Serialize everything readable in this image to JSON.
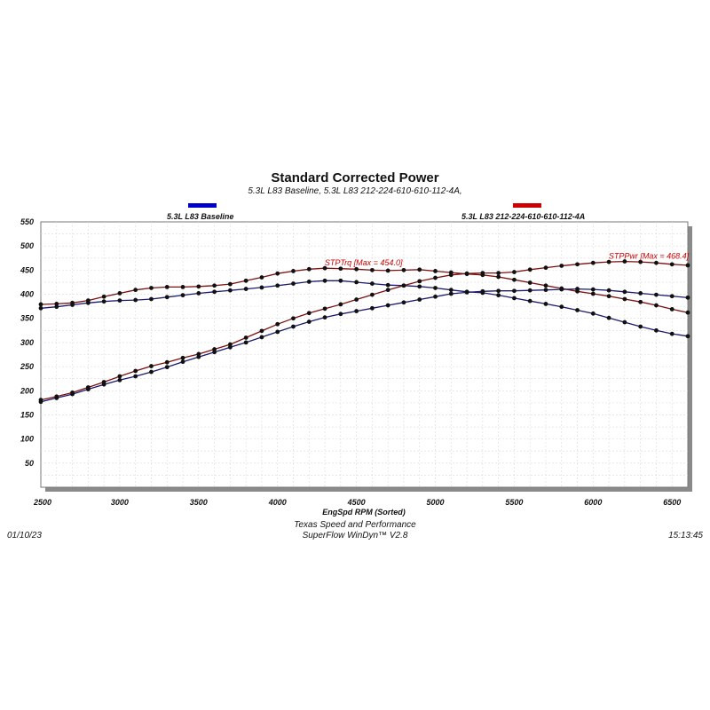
{
  "header": {
    "title": "Standard Corrected Power",
    "subtitle": "5.3L L83 Baseline, 5.3L L83 212-224-610-610-112-4A,"
  },
  "legend": [
    {
      "label": "5.3L L83 Baseline",
      "color": "#0000cc"
    },
    {
      "label": "5.3L L83 212-224-610-610-112-4A",
      "color": "#cc0000"
    }
  ],
  "footer": {
    "date": "01/10/23",
    "time": "15:13:45",
    "shop": "Texas Speed and Performance",
    "software": "SuperFlow WinDyn™  V2.8"
  },
  "chart_data": {
    "type": "line",
    "title": "Standard Corrected Power",
    "xlabel": "EngSpd  RPM   (Sorted)",
    "ylabel": "",
    "xlim": [
      2500,
      6600
    ],
    "ylim": [
      0,
      550
    ],
    "x_ticks": [
      2500,
      3000,
      3500,
      4000,
      4500,
      5000,
      5500,
      6000,
      6500
    ],
    "y_ticks": [
      50,
      100,
      150,
      200,
      250,
      300,
      350,
      400,
      450,
      500,
      550
    ],
    "grid": true,
    "legend_position": "top",
    "x": [
      2500,
      2600,
      2700,
      2800,
      2900,
      3000,
      3100,
      3200,
      3300,
      3400,
      3500,
      3600,
      3700,
      3800,
      3900,
      4000,
      4100,
      4200,
      4300,
      4400,
      4500,
      4600,
      4700,
      4800,
      4900,
      5000,
      5100,
      5200,
      5300,
      5400,
      5500,
      5600,
      5700,
      5800,
      5900,
      6000,
      6100,
      6200,
      6300,
      6400,
      6500,
      6600
    ],
    "series": [
      {
        "name": "5.3L L83 Baseline",
        "color": "#1a1a6e",
        "values": [
          371,
          374,
          378,
          382,
          385,
          387,
          388,
          390,
          394,
          398,
          402,
          405,
          408,
          411,
          414,
          418,
          422,
          426,
          428,
          428,
          425,
          422,
          419,
          418,
          416,
          413,
          409,
          405,
          403,
          398,
          392,
          386,
          380,
          374,
          367,
          360,
          351,
          342,
          333,
          325,
          318,
          313
        ]
      },
      {
        "name": "5.3L L83 212-224-610-610-112-4A",
        "color": "#7a1010",
        "values": [
          379,
          380,
          382,
          387,
          395,
          402,
          409,
          413,
          415,
          415,
          416,
          418,
          421,
          428,
          435,
          443,
          448,
          452,
          454,
          453,
          452,
          450,
          449,
          450,
          451,
          448,
          445,
          442,
          440,
          436,
          430,
          424,
          418,
          412,
          406,
          401,
          396,
          390,
          384,
          377,
          369,
          362
        ]
      },
      {
        "name": "5.3L L83 Baseline",
        "color": "#1a1a6e",
        "values": [
          177,
          185,
          193,
          203,
          213,
          222,
          230,
          239,
          249,
          260,
          270,
          280,
          290,
          300,
          311,
          322,
          333,
          343,
          352,
          359,
          365,
          371,
          377,
          383,
          389,
          395,
          401,
          404,
          406,
          407,
          407,
          408,
          409,
          410,
          411,
          410,
          408,
          405,
          402,
          399,
          396,
          393
        ]
      },
      {
        "name": "5.3L L83 212-224-610-610-112-4A",
        "color": "#7a1010",
        "values": [
          181,
          188,
          196,
          207,
          218,
          230,
          241,
          251,
          259,
          268,
          276,
          286,
          296,
          310,
          324,
          338,
          350,
          361,
          370,
          379,
          389,
          399,
          409,
          418,
          427,
          434,
          440,
          443,
          444,
          444,
          446,
          451,
          455,
          459,
          462,
          465,
          467,
          468,
          467,
          465,
          462,
          460
        ]
      }
    ],
    "annotations": [
      {
        "text": "STPTrq [Max = 454.0]",
        "x": 4400,
        "y": 454
      },
      {
        "text": "STPPwr [Max = 468.4]",
        "x": 6200,
        "y": 468
      }
    ]
  }
}
